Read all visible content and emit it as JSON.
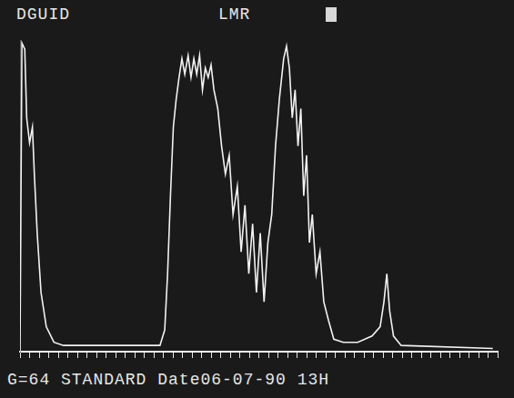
{
  "chart_data": {
    "type": "line",
    "annotations": [
      "DGUID",
      "LMR",
      "G=64 STANDARD Date06-07-90 13H"
    ],
    "x": [
      0,
      0.4,
      1.0,
      1.4,
      2.0,
      2.6,
      3.0,
      3.6,
      4.4,
      5.5,
      7.1,
      9.1,
      29.3,
      30.3,
      30.9,
      31.5,
      32.1,
      32.7,
      33.3,
      33.9,
      34.5,
      35.2,
      35.8,
      36.4,
      37.0,
      37.6,
      38.2,
      38.8,
      39.4,
      40.0,
      40.6,
      41.4,
      42.2,
      43.0,
      43.8,
      44.6,
      45.5,
      46.3,
      47.1,
      47.9,
      48.7,
      49.5,
      50.3,
      51.1,
      51.9,
      52.7,
      53.5,
      54.3,
      55.2,
      55.8,
      56.4,
      57.0,
      57.6,
      58.2,
      58.8,
      59.4,
      60.0,
      60.6,
      61.2,
      62.0,
      62.8,
      63.6,
      64.6,
      65.7,
      67.7,
      70.7,
      73.7,
      75.4,
      76.2,
      76.8,
      77.4,
      78.2,
      79.8,
      99.0
    ],
    "values": [
      0,
      99,
      97,
      75,
      67,
      72,
      57,
      38,
      19,
      8,
      3,
      2,
      2,
      7,
      25,
      50,
      72,
      81,
      88,
      94,
      89,
      95,
      88,
      94,
      89,
      95,
      84,
      91,
      88,
      92,
      84,
      78,
      66,
      57,
      63,
      44,
      53,
      32,
      47,
      25,
      41,
      19,
      38,
      16,
      35,
      44,
      66,
      81,
      94,
      98,
      91,
      75,
      84,
      66,
      78,
      50,
      63,
      35,
      44,
      25,
      32,
      16,
      10,
      4,
      3,
      3,
      5,
      8,
      16,
      25,
      13,
      5,
      2,
      1
    ],
    "color": "#f2f2f2",
    "xlim": [
      0,
      100
    ],
    "ylim": [
      0,
      100
    ],
    "xticks": [
      0,
      2,
      4,
      6,
      8,
      10,
      12,
      14,
      16,
      18,
      20,
      22,
      24,
      26,
      28,
      30,
      32,
      34,
      36,
      38,
      40,
      42,
      44,
      46,
      48,
      50,
      52,
      54,
      56,
      58,
      60,
      62,
      64,
      66,
      68,
      70,
      72,
      74,
      76,
      78,
      80,
      82,
      84,
      86,
      88,
      90,
      92,
      94,
      96,
      98,
      100
    ],
    "grid": false,
    "tick_labels": false
  }
}
